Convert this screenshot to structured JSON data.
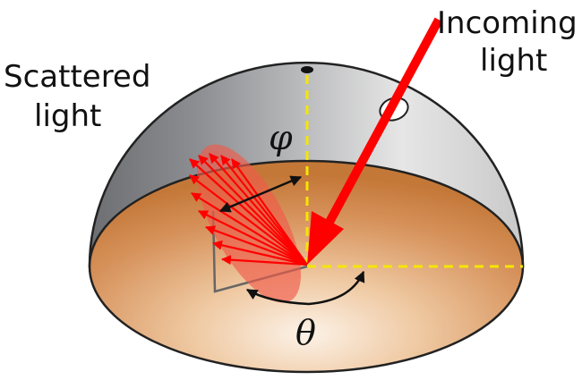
{
  "labels": {
    "incoming_line1": "Incoming",
    "incoming_line2": "light",
    "scattered_line1": "Scattered",
    "scattered_line2": "light",
    "phi": "φ",
    "theta": "θ"
  },
  "colors": {
    "dome_dark": "#6f7073",
    "dome_light": "#eeeeee",
    "floor_center": "#fbefe4",
    "floor_edge": "#c97a3a",
    "lobe": "#f05a4a",
    "ray": "#ff0000",
    "guide": "#f5e600",
    "outline": "#222222"
  }
}
